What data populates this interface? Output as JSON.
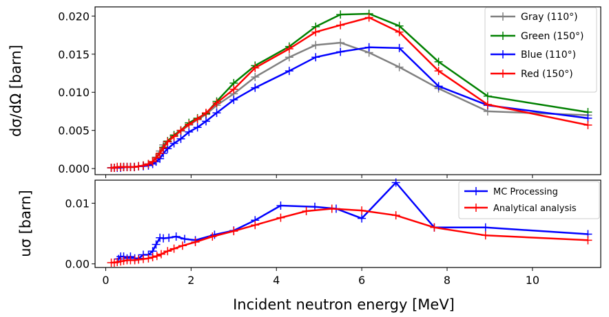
{
  "chart_data": [
    {
      "type": "line",
      "panel": "top",
      "ylabel": "dσ/dΩ [barn]",
      "xlabel": "",
      "xlim": [
        -0.25,
        11.6
      ],
      "ylim": [
        -0.0008,
        0.0212
      ],
      "xticks": [
        0,
        2,
        4,
        6,
        8,
        10
      ],
      "yticks": [
        0.0,
        0.005,
        0.01,
        0.015,
        0.02
      ],
      "ytick_labels": [
        "0.000",
        "0.005",
        "0.010",
        "0.015",
        "0.020"
      ],
      "legend_position": "upper-right",
      "series": [
        {
          "name": "Gray (110°)",
          "color": "#808080",
          "x": [
            0.13,
            0.2,
            0.27,
            0.35,
            0.42,
            0.5,
            0.58,
            0.67,
            0.77,
            0.88,
            1.0,
            1.1,
            1.18,
            1.27,
            1.35,
            1.45,
            1.6,
            1.76,
            1.95,
            2.15,
            2.35,
            2.6,
            3.0,
            3.5,
            4.3,
            4.92,
            5.5,
            6.17,
            6.88,
            7.8,
            8.95,
            11.3
          ],
          "y": [
            0.0001,
            0.0001,
            0.0002,
            0.0002,
            0.0002,
            0.0002,
            0.0002,
            0.0002,
            0.0003,
            0.0004,
            0.0006,
            0.0009,
            0.0015,
            0.0023,
            0.0031,
            0.0036,
            0.0043,
            0.0049,
            0.0057,
            0.0064,
            0.0071,
            0.0083,
            0.0098,
            0.012,
            0.0146,
            0.0162,
            0.0165,
            0.0152,
            0.0133,
            0.0105,
            0.0075,
            0.007
          ]
        },
        {
          "name": "Green (150°)",
          "color": "#008000",
          "x": [
            0.13,
            0.2,
            0.27,
            0.35,
            0.42,
            0.5,
            0.58,
            0.67,
            0.77,
            0.88,
            1.0,
            1.1,
            1.18,
            1.27,
            1.35,
            1.45,
            1.6,
            1.76,
            1.95,
            2.15,
            2.35,
            2.6,
            3.0,
            3.5,
            4.3,
            4.92,
            5.5,
            6.17,
            6.88,
            7.8,
            8.95,
            11.3
          ],
          "y": [
            0.0001,
            0.0001,
            0.0002,
            0.0002,
            0.0002,
            0.0002,
            0.0002,
            0.0002,
            0.0003,
            0.0004,
            0.0006,
            0.0009,
            0.0014,
            0.002,
            0.0028,
            0.0036,
            0.0044,
            0.005,
            0.006,
            0.0066,
            0.0072,
            0.0088,
            0.0112,
            0.0135,
            0.016,
            0.0186,
            0.0202,
            0.0203,
            0.0187,
            0.014,
            0.0095,
            0.0074
          ]
        },
        {
          "name": "Blue (110°)",
          "color": "#0000ff",
          "x": [
            0.13,
            0.2,
            0.27,
            0.35,
            0.42,
            0.5,
            0.58,
            0.67,
            0.77,
            0.88,
            1.0,
            1.1,
            1.18,
            1.27,
            1.35,
            1.45,
            1.6,
            1.76,
            1.95,
            2.15,
            2.35,
            2.6,
            3.0,
            3.5,
            4.3,
            4.92,
            5.5,
            6.17,
            6.88,
            7.8,
            8.95,
            11.3
          ],
          "y": [
            0.0001,
            0.0001,
            0.0001,
            0.0001,
            0.0002,
            0.0002,
            0.0002,
            0.0002,
            0.0003,
            0.0003,
            0.0004,
            0.0006,
            0.0009,
            0.0013,
            0.002,
            0.0026,
            0.0033,
            0.0039,
            0.0048,
            0.0054,
            0.0062,
            0.0073,
            0.009,
            0.0106,
            0.0128,
            0.0146,
            0.0153,
            0.0159,
            0.0158,
            0.0108,
            0.0083,
            0.0066
          ]
        },
        {
          "name": "Red (150°)",
          "color": "#ff0000",
          "x": [
            0.13,
            0.2,
            0.27,
            0.35,
            0.42,
            0.5,
            0.58,
            0.67,
            0.77,
            0.88,
            1.0,
            1.1,
            1.18,
            1.27,
            1.35,
            1.45,
            1.6,
            1.76,
            1.95,
            2.15,
            2.35,
            2.6,
            3.0,
            3.5,
            4.3,
            4.92,
            5.5,
            6.17,
            6.88,
            7.8,
            8.95,
            11.3
          ],
          "y": [
            0.0001,
            0.0001,
            0.0002,
            0.0002,
            0.0002,
            0.0002,
            0.0002,
            0.0002,
            0.0003,
            0.0004,
            0.0006,
            0.0009,
            0.0014,
            0.002,
            0.0027,
            0.0035,
            0.0042,
            0.005,
            0.0058,
            0.0065,
            0.0073,
            0.0086,
            0.0104,
            0.0132,
            0.0157,
            0.0179,
            0.0188,
            0.0198,
            0.0179,
            0.0128,
            0.0084,
            0.0057
          ]
        }
      ]
    },
    {
      "type": "line",
      "panel": "bottom",
      "ylabel": "uσ [barn]",
      "xlabel": "Incident neutron energy [MeV]",
      "xlim": [
        -0.25,
        11.6
      ],
      "ylim": [
        -0.0006,
        0.0138
      ],
      "xticks": [
        0,
        2,
        4,
        6,
        8,
        10
      ],
      "xtick_labels": [
        "0",
        "2",
        "4",
        "6",
        "8",
        "10"
      ],
      "yticks": [
        0.0,
        0.01
      ],
      "ytick_labels": [
        "0.00",
        "0.01"
      ],
      "legend_position": "upper-right",
      "series": [
        {
          "name": "MC Processing",
          "color": "#0000ff",
          "x": [
            0.3,
            0.35,
            0.42,
            0.5,
            0.58,
            0.68,
            0.77,
            0.88,
            1.0,
            1.1,
            1.18,
            1.27,
            1.35,
            1.48,
            1.65,
            1.85,
            2.1,
            2.55,
            3.0,
            3.5,
            4.1,
            4.9,
            5.4,
            6.0,
            6.8,
            7.7,
            8.9,
            11.3
          ],
          "y": [
            0.0008,
            0.0012,
            0.0012,
            0.0009,
            0.0012,
            0.0009,
            0.0009,
            0.0015,
            0.0015,
            0.0021,
            0.0032,
            0.0043,
            0.0042,
            0.0043,
            0.0045,
            0.0041,
            0.0039,
            0.0048,
            0.0055,
            0.0072,
            0.0096,
            0.0094,
            0.0091,
            0.0075,
            0.0134,
            0.006,
            0.006,
            0.0049
          ]
        },
        {
          "name": "Analytical analysis",
          "color": "#ff0000",
          "x": [
            0.13,
            0.2,
            0.27,
            0.35,
            0.42,
            0.5,
            0.58,
            0.68,
            0.77,
            0.88,
            1.0,
            1.1,
            1.2,
            1.3,
            1.45,
            1.6,
            1.8,
            2.1,
            2.5,
            3.0,
            3.5,
            4.1,
            4.7,
            5.3,
            6.0,
            6.8,
            7.7,
            8.9,
            11.3
          ],
          "y": [
            0.0002,
            0.0002,
            0.0003,
            0.0004,
            0.0005,
            0.0006,
            0.0006,
            0.0006,
            0.0007,
            0.0008,
            0.0009,
            0.0011,
            0.0013,
            0.0016,
            0.0021,
            0.0025,
            0.003,
            0.0036,
            0.0045,
            0.0054,
            0.0064,
            0.0076,
            0.0087,
            0.0091,
            0.0088,
            0.008,
            0.006,
            0.0047,
            0.0039
          ]
        }
      ]
    }
  ]
}
